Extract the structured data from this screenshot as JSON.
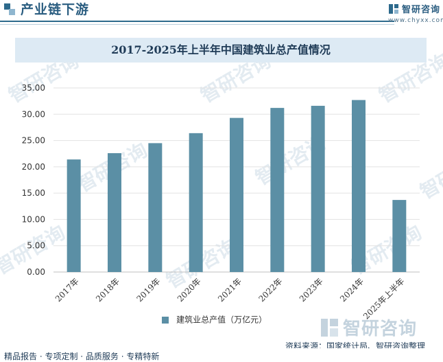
{
  "header": {
    "title": "产业链下游",
    "logo_name": "智研咨询",
    "logo_url": "www.chyxx.com"
  },
  "chart_data": {
    "type": "bar",
    "title": "2017-2025年上半年中国建筑业总产值情况",
    "categories": [
      "2017年",
      "2018年",
      "2019年",
      "2020年",
      "2021年",
      "2022年",
      "2023年",
      "2024年",
      "2025年上半年"
    ],
    "series": [
      {
        "name": "建筑业总产值（万亿元）",
        "values": [
          21.4,
          22.6,
          24.5,
          26.4,
          29.3,
          31.2,
          31.6,
          32.7,
          13.7
        ]
      }
    ],
    "ylim": [
      0,
      35
    ],
    "yticks": [
      "0.00",
      "5.00",
      "10.00",
      "15.00",
      "20.00",
      "25.00",
      "30.00",
      "35.00"
    ],
    "grid": true,
    "legend": "bottom-center",
    "color": "#5b8fa5"
  },
  "watermark": "智研咨询",
  "source": "资料来源：国家统计局、智研咨询整理",
  "footer": "精品报告 · 专项定制 · 品质服务 · 专精特新"
}
